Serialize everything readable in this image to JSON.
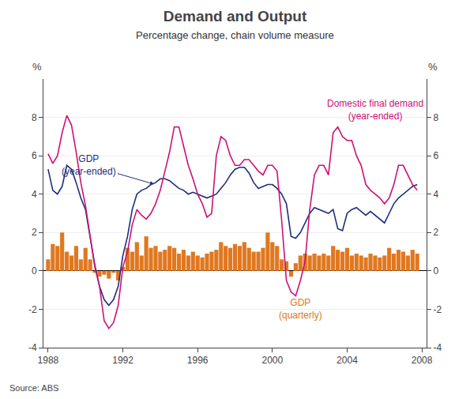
{
  "chart_data": {
    "type": "bar",
    "title": "Demand and Output",
    "subtitle": "Percentage change, chain volume measure",
    "source": "Source: ABS",
    "ylabel": "%",
    "y2label": "%",
    "xlim": [
      1987.75,
      2008.25
    ],
    "xticks": [
      1988,
      1992,
      1996,
      2000,
      2004,
      2008
    ],
    "ylim": [
      -4,
      10
    ],
    "yticks": [
      -4,
      -2,
      0,
      2,
      4,
      6,
      8
    ],
    "y2lim": [
      -4,
      10
    ],
    "y2ticks": [
      -4,
      -2,
      0,
      2,
      4,
      6,
      8
    ],
    "grid": true,
    "x": [
      1988.0,
      1988.25,
      1988.5,
      1988.75,
      1989.0,
      1989.25,
      1989.5,
      1989.75,
      1990.0,
      1990.25,
      1990.5,
      1990.75,
      1991.0,
      1991.25,
      1991.5,
      1991.75,
      1992.0,
      1992.25,
      1992.5,
      1992.75,
      1993.0,
      1993.25,
      1993.5,
      1993.75,
      1994.0,
      1994.25,
      1994.5,
      1994.75,
      1995.0,
      1995.25,
      1995.5,
      1995.75,
      1996.0,
      1996.25,
      1996.5,
      1996.75,
      1997.0,
      1997.25,
      1997.5,
      1997.75,
      1998.0,
      1998.25,
      1998.5,
      1998.75,
      1999.0,
      1999.25,
      1999.5,
      1999.75,
      2000.0,
      2000.25,
      2000.5,
      2000.75,
      2001.0,
      2001.25,
      2001.5,
      2001.75,
      2002.0,
      2002.25,
      2002.5,
      2002.75,
      2003.0,
      2003.25,
      2003.5,
      2003.75,
      2004.0,
      2004.25,
      2004.5,
      2004.75,
      2005.0,
      2005.25,
      2005.5,
      2005.75,
      2006.0,
      2006.25,
      2006.5,
      2006.75,
      2007.0,
      2007.25,
      2007.5,
      2007.75
    ],
    "series": [
      {
        "name": "GDP\n(quarterly)",
        "type": "bar",
        "color": "#e07820",
        "values": [
          0.6,
          1.4,
          1.3,
          2.0,
          1.0,
          0.8,
          1.3,
          0.6,
          1.2,
          0.6,
          -0.1,
          -0.3,
          -0.2,
          -0.4,
          -0.1,
          -0.5,
          0.2,
          1.2,
          1.0,
          1.5,
          0.8,
          1.8,
          1.2,
          1.3,
          1.0,
          1.1,
          1.3,
          1.2,
          0.9,
          1.1,
          0.8,
          1.0,
          0.8,
          0.7,
          0.9,
          1.0,
          1.1,
          1.5,
          1.3,
          1.2,
          1.4,
          1.3,
          1.5,
          1.2,
          1.0,
          1.0,
          1.2,
          2.0,
          1.5,
          1.3,
          0.6,
          0.5,
          -0.3,
          0.4,
          0.8,
          0.9,
          0.8,
          0.9,
          0.8,
          0.9,
          0.8,
          1.3,
          1.1,
          1.0,
          1.2,
          0.8,
          0.9,
          0.8,
          0.7,
          0.9,
          0.8,
          0.7,
          0.8,
          1.2,
          0.9,
          1.1,
          1.0,
          0.8,
          1.1,
          0.9
        ]
      },
      {
        "name": "GDP\n(year-ended)",
        "type": "line",
        "color": "#1f2d7b",
        "values": [
          5.3,
          4.2,
          4.0,
          4.4,
          5.5,
          5.3,
          4.6,
          3.8,
          3.2,
          1.8,
          0.3,
          -0.8,
          -1.5,
          -1.8,
          -1.5,
          -0.8,
          0.8,
          1.8,
          3.2,
          4.0,
          4.2,
          4.3,
          4.5,
          4.6,
          4.8,
          4.8,
          4.7,
          4.5,
          4.3,
          4.2,
          4.0,
          4.1,
          4.0,
          3.9,
          3.8,
          3.9,
          4.0,
          4.3,
          4.6,
          5.0,
          5.3,
          5.4,
          5.4,
          5.1,
          4.6,
          4.3,
          4.4,
          4.5,
          4.5,
          4.3,
          4.0,
          3.5,
          1.8,
          1.7,
          2.0,
          2.5,
          3.0,
          3.3,
          3.2,
          3.1,
          3.0,
          3.2,
          2.2,
          2.1,
          3.0,
          3.2,
          3.3,
          3.1,
          2.9,
          3.1,
          2.9,
          2.7,
          2.5,
          3.0,
          3.5,
          3.8,
          4.0,
          4.2,
          4.4,
          4.5
        ]
      },
      {
        "name": "Domestic final demand\n(year-ended)",
        "type": "line",
        "color": "#cc1177",
        "values": [
          6.1,
          5.6,
          6.0,
          7.2,
          8.1,
          7.6,
          6.2,
          4.6,
          3.4,
          1.8,
          0.2,
          -0.8,
          -2.6,
          -3.0,
          -2.7,
          -1.8,
          0.2,
          1.0,
          2.4,
          3.2,
          2.9,
          2.7,
          3.0,
          3.5,
          4.2,
          5.2,
          6.2,
          7.5,
          7.5,
          6.5,
          5.5,
          4.8,
          4.0,
          3.5,
          2.8,
          3.0,
          6.0,
          7.0,
          6.8,
          6.0,
          5.5,
          5.5,
          5.8,
          5.8,
          5.5,
          5.2,
          5.0,
          5.5,
          5.5,
          5.2,
          2.6,
          -0.5,
          -1.1,
          -1.3,
          -0.5,
          0.5,
          3.2,
          5.0,
          5.5,
          5.5,
          5.0,
          7.2,
          7.5,
          7.0,
          6.8,
          6.8,
          6.0,
          5.5,
          4.5,
          4.2,
          4.0,
          3.8,
          3.5,
          3.8,
          4.5,
          5.5,
          5.5,
          5.0,
          4.5,
          4.2
        ]
      }
    ]
  }
}
